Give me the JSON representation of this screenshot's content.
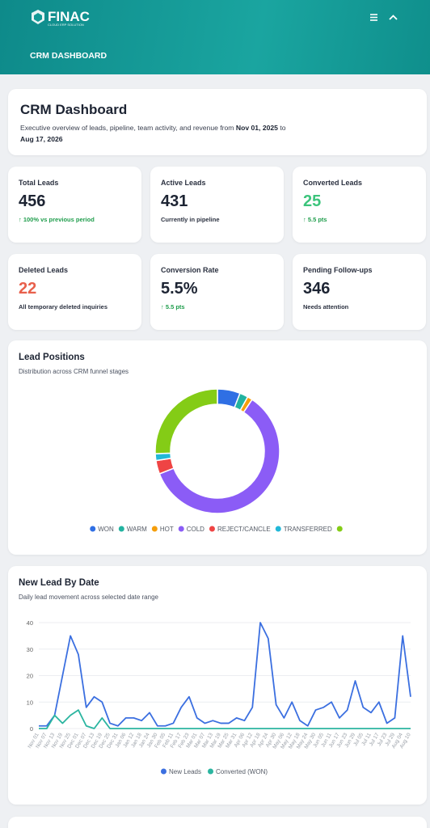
{
  "header": {
    "logo": "FINAC",
    "logo_tagline": "CLOUD ERP SOLUTION",
    "nav": "CRM DASHBOARD"
  },
  "intro": {
    "title": "CRM Dashboard",
    "description": "Executive overview of leads, pipeline, team activity, and revenue from ",
    "date_from": "Nov 01, 2025",
    "connector": " to ",
    "date_to": "Aug 17, 2026"
  },
  "cards": [
    {
      "label": "Total Leads",
      "value": "456",
      "note": "↑ 100% vs previous period",
      "color": "#1d2433",
      "note_color": "#1f9d4c"
    },
    {
      "label": "Active Leads",
      "value": "431",
      "note": "Currently in pipeline",
      "color": "#1d2433",
      "note_color": "#2b3140"
    },
    {
      "label": "Converted Leads",
      "value": "25",
      "note": "↑ 5.5 pts",
      "color": "#3cc47c",
      "note_color": "#1f9d4c"
    },
    {
      "label": "Deleted Leads",
      "value": "22",
      "note": "All temporary deleted inquiries",
      "color": "#e8604c",
      "note_color": "#2b3140"
    },
    {
      "label": "Conversion Rate",
      "value": "5.5%",
      "note": "↑ 5.5 pts",
      "color": "#1d2433",
      "note_color": "#1f9d4c"
    },
    {
      "label": "Pending Follow-ups",
      "value": "346",
      "note": "Needs attention",
      "color": "#1d2433",
      "note_color": "#2b3140"
    }
  ],
  "chart_data": [
    {
      "type": "donut",
      "title": "Lead Positions",
      "subtitle": "Distribution across CRM funnel stages",
      "categories": [
        "WON",
        "WARM",
        "HOT",
        "COLD",
        "REJECT/CANCLE",
        "TRANSFERRED",
        null
      ],
      "values": [
        27,
        10,
        6,
        272,
        16,
        8,
        117
      ],
      "colors": [
        "#2f6fe4",
        "#22b3a0",
        "#f59e0b",
        "#8b5cf6",
        "#ef4444",
        "#22b8d8",
        "#84cc16"
      ]
    },
    {
      "type": "line",
      "title": "New Lead By Date",
      "subtitle": "Daily lead movement across selected date range",
      "categories": [
        "Nov 01",
        "Nov 07",
        "Nov 13",
        "Nov 19",
        "Nov 25",
        "Dec 01",
        "Dec 07",
        "Dec 13",
        "Dec 19",
        "Dec 25",
        "Dec 31",
        "Jan 06",
        "Jan 12",
        "Jan 18",
        "Jan 24",
        "Jan 30",
        "Feb 05",
        "Feb 11",
        "Feb 17",
        "Feb 23",
        "Mar 01",
        "Mar 07",
        "Mar 13",
        "Mar 19",
        "Mar 25",
        "Mar 31",
        "Apr 06",
        "Apr 12",
        "Apr 18",
        "Apr 24",
        "Apr 30",
        "May 06",
        "May 12",
        "May 18",
        "May 24",
        "May 30",
        "Jun 05",
        "Jun 11",
        "Jun 17",
        "Jun 23",
        "Jun 29",
        "Jul 05",
        "Jul 11",
        "Jul 17",
        "Jul 23",
        "Jul 29",
        "Aug 04",
        "Aug 10"
      ],
      "series": [
        {
          "name": "New Leads",
          "color": "#3b6fe0",
          "values": [
            1,
            1,
            5,
            20,
            35,
            28,
            8,
            12,
            10,
            2,
            1,
            4,
            4,
            3,
            6,
            1,
            1,
            2,
            8,
            12,
            4,
            2,
            3,
            2,
            2,
            4,
            3,
            8,
            40,
            34,
            9,
            4,
            10,
            3,
            1,
            7,
            8,
            10,
            4,
            7,
            18,
            8,
            6,
            10,
            2,
            4,
            35,
            12
          ]
        },
        {
          "name": "Converted (WON)",
          "color": "#2bb5a0",
          "values": [
            0,
            0,
            5,
            2,
            5,
            7,
            1,
            0,
            4,
            0,
            0,
            0,
            0,
            0,
            0,
            0,
            0,
            0,
            0,
            0,
            0,
            0,
            0,
            0,
            0,
            0,
            0,
            0,
            0,
            0,
            0,
            0,
            0,
            0,
            0,
            0,
            0,
            0,
            0,
            0,
            0,
            0,
            0,
            0,
            0,
            0,
            0,
            0
          ]
        }
      ],
      "ylim": [
        0,
        40
      ],
      "yticks": [
        0,
        10,
        20,
        30,
        40
      ],
      "grid": true
    }
  ]
}
